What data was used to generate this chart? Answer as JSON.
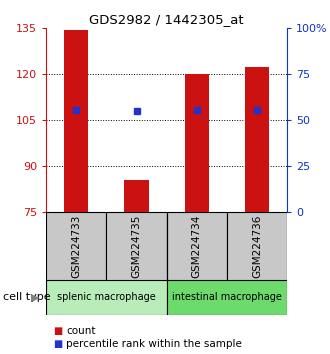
{
  "title": "GDS2982 / 1442305_at",
  "samples": [
    "GSM224733",
    "GSM224735",
    "GSM224734",
    "GSM224736"
  ],
  "bar_values": [
    134.5,
    85.5,
    120.0,
    122.5
  ],
  "percentile_values": [
    108.5,
    108.0,
    108.5,
    108.5
  ],
  "bar_color": "#cc1111",
  "percentile_color": "#2233cc",
  "bar_bottom": 75,
  "ylim_left": [
    75,
    135
  ],
  "yticks_left": [
    75,
    90,
    105,
    120,
    135
  ],
  "ytick_labels_left": [
    "75",
    "90",
    "105",
    "120",
    "135"
  ],
  "yticks_right_vals": [
    75,
    90,
    105,
    120,
    135
  ],
  "ytick_labels_right": [
    "0",
    "25",
    "50",
    "75",
    "100%"
  ],
  "gridlines_at": [
    90,
    105,
    120
  ],
  "groups": [
    {
      "label": "splenic macrophage",
      "indices": [
        0,
        1
      ],
      "color": "#b8ecb8"
    },
    {
      "label": "intestinal macrophage",
      "indices": [
        2,
        3
      ],
      "color": "#6cdb6c"
    }
  ],
  "cell_type_label": "cell type",
  "legend_count_label": "count",
  "legend_pct_label": "percentile rank within the sample",
  "bar_width": 0.4,
  "sample_box_color": "#c8c8c8",
  "left_axis_color": "#cc1111",
  "right_axis_color": "#1133cc",
  "title_fontsize": 9.5,
  "tick_fontsize": 8,
  "sample_label_fontsize": 7.5,
  "group_label_fontsize": 7,
  "legend_fontsize": 7.5
}
